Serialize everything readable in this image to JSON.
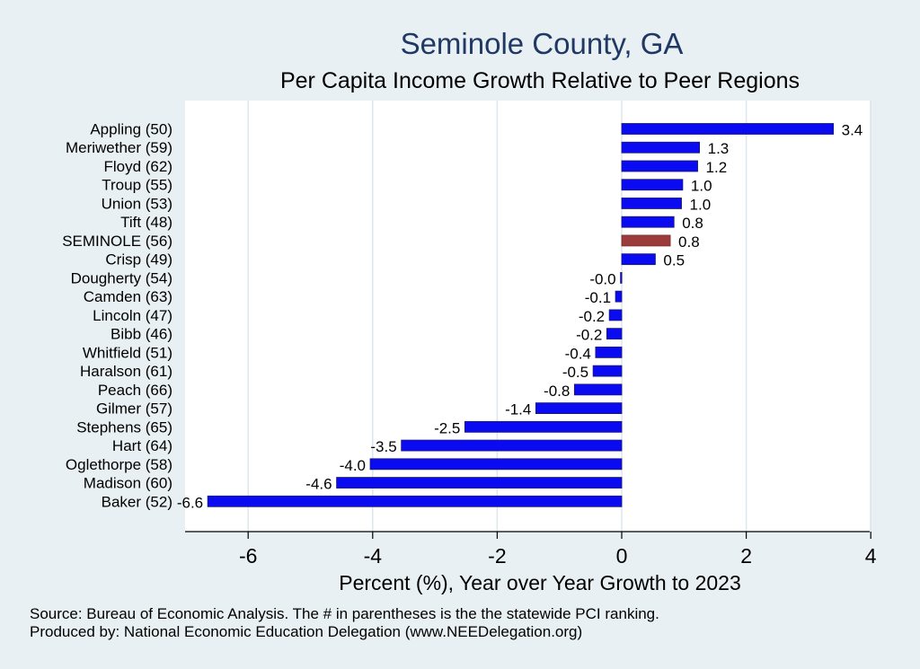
{
  "chart_data": {
    "type": "bar",
    "orientation": "horizontal",
    "title": "Seminole County, GA",
    "subtitle": "Per Capita Income Growth Relative to Peer Regions",
    "xlabel": "Percent (%), Year over Year Growth to 2023",
    "ylabel": "",
    "xlim": [
      -7,
      4.2
    ],
    "xticks": [
      -6,
      -4,
      -2,
      0,
      2,
      4
    ],
    "grid": true,
    "colors": {
      "default": "#0b0bf2",
      "highlight": "#9b3b3b",
      "bar_edge": "#1a1a6e",
      "title": "#1f3864",
      "grid": "#dde7ec"
    },
    "categories": [
      "Appling (50)",
      "Meriwether (59)",
      "Floyd (62)",
      "Troup (55)",
      "Union (53)",
      "Tift (48)",
      "SEMINOLE (56)",
      "Crisp (49)",
      "Dougherty (54)",
      "Camden (63)",
      "Lincoln (47)",
      "Bibb (46)",
      "Whitfield (51)",
      "Haralson (61)",
      "Peach (66)",
      "Gilmer (57)",
      "Stephens (65)",
      "Hart (64)",
      "Oglethorpe (58)",
      "Madison (60)",
      "Baker (52)"
    ],
    "values": [
      3.4,
      1.25,
      1.22,
      0.98,
      0.96,
      0.84,
      0.78,
      0.54,
      -0.02,
      -0.1,
      -0.2,
      -0.24,
      -0.42,
      -0.46,
      -0.76,
      -1.38,
      -2.52,
      -3.54,
      -4.04,
      -4.58,
      -6.65
    ],
    "value_labels": [
      "3.4",
      "1.3",
      "1.2",
      "1.0",
      "1.0",
      "0.8",
      "0.8",
      "0.5",
      "-0.0",
      "-0.1",
      "-0.2",
      "-0.2",
      "-0.4",
      "-0.5",
      "-0.8",
      "-1.4",
      "-2.5",
      "-3.5",
      "-4.0",
      "-4.6",
      "-6.6"
    ],
    "highlight_index": 6
  },
  "footer": {
    "source": "Source: Bureau of Economic Analysis. The # in parentheses is the the statewide PCI ranking.",
    "produced_by": "Produced by: National Economic Education Delegation (www.NEEDelegation.org)"
  }
}
